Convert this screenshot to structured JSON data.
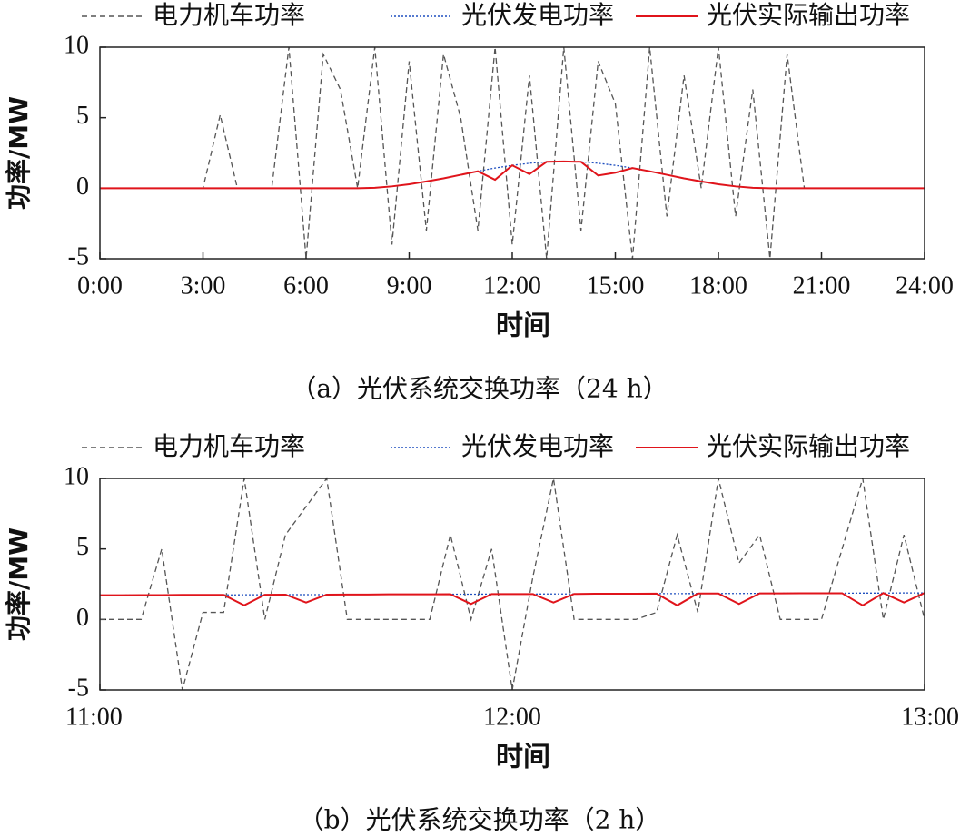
{
  "chart_data": [
    {
      "type": "line",
      "caption": "（a）光伏系统交换功率（24 h）",
      "xlabel": "时间",
      "ylabel": "功率/MW",
      "x": [
        0,
        0.5,
        1,
        1.5,
        2,
        2.5,
        3,
        3.5,
        4,
        4.5,
        5,
        5.5,
        6,
        6.5,
        7,
        7.5,
        8,
        8.5,
        9,
        9.5,
        10,
        10.5,
        11,
        11.5,
        12,
        12.5,
        13,
        13.5,
        14,
        14.5,
        15,
        15.5,
        16,
        16.5,
        17,
        17.5,
        18,
        18.5,
        19,
        19.5,
        20,
        20.5,
        21,
        21.5,
        22,
        22.5,
        23,
        23.5,
        24
      ],
      "xlim": [
        0,
        24
      ],
      "xticks": [
        {
          "value": 0,
          "label": "0:00"
        },
        {
          "value": 3,
          "label": "3:00"
        },
        {
          "value": 6,
          "label": "6:00"
        },
        {
          "value": 9,
          "label": "9:00"
        },
        {
          "value": 12,
          "label": "12:00"
        },
        {
          "value": 15,
          "label": "15:00"
        },
        {
          "value": 18,
          "label": "18:00"
        },
        {
          "value": 21,
          "label": "21:00"
        },
        {
          "value": 24,
          "label": "24:00"
        }
      ],
      "ylim": [
        -5,
        10
      ],
      "yticks": [
        -5,
        0,
        5,
        10
      ],
      "series": [
        {
          "name": "电力机车功率",
          "color": "#555555",
          "dash": "dashed",
          "values": [
            0,
            0,
            0,
            0,
            0,
            0,
            0,
            5.2,
            0,
            0,
            0,
            10,
            -5,
            9.5,
            7,
            0,
            10,
            -4,
            9,
            -3,
            9.5,
            5,
            -3,
            10,
            -4,
            8,
            -5,
            10,
            -3,
            9,
            6,
            -5,
            10,
            -2,
            8,
            0,
            10,
            -2,
            7,
            -5,
            9.5,
            0,
            0,
            0,
            0,
            0,
            0,
            0,
            0
          ]
        },
        {
          "name": "光伏发电功率",
          "color": "#1f4fbf",
          "dash": "dotted",
          "values": [
            0,
            0,
            0,
            0,
            0,
            0,
            0,
            0,
            0,
            0,
            0,
            0,
            0,
            0,
            0,
            0,
            0.03,
            0.13,
            0.28,
            0.48,
            0.7,
            0.95,
            1.2,
            1.43,
            1.62,
            1.77,
            1.87,
            1.9,
            1.87,
            1.77,
            1.62,
            1.43,
            1.2,
            0.95,
            0.7,
            0.48,
            0.28,
            0.13,
            0.03,
            0,
            0,
            0,
            0,
            0,
            0,
            0,
            0,
            0,
            0
          ]
        },
        {
          "name": "光伏实际输出功率",
          "color": "#e0141b",
          "dash": "solid",
          "values": [
            0,
            0,
            0,
            0,
            0,
            0,
            0,
            0,
            0,
            0,
            0,
            0,
            0,
            0,
            0,
            0,
            0.03,
            0.13,
            0.28,
            0.48,
            0.7,
            0.95,
            1.2,
            0.6,
            1.62,
            1.0,
            1.87,
            1.9,
            1.87,
            0.9,
            1.1,
            1.43,
            1.2,
            0.95,
            0.7,
            0.48,
            0.28,
            0.13,
            0.03,
            0,
            0,
            0,
            0,
            0,
            0,
            0,
            0,
            0,
            0
          ]
        }
      ]
    },
    {
      "type": "line",
      "caption": "（b）光伏系统交换功率（2 h）",
      "xlabel": "时间",
      "ylabel": "功率/MW",
      "x": [
        11,
        11.05,
        11.1,
        11.15,
        11.2,
        11.25,
        11.3,
        11.35,
        11.4,
        11.45,
        11.5,
        11.55,
        11.6,
        11.65,
        11.7,
        11.75,
        11.8,
        11.85,
        11.9,
        11.95,
        12,
        12.05,
        12.1,
        12.15,
        12.2,
        12.25,
        12.3,
        12.35,
        12.4,
        12.45,
        12.5,
        12.55,
        12.6,
        12.65,
        12.7,
        12.75,
        12.8,
        12.85,
        12.9,
        12.95,
        13
      ],
      "xlim": [
        11,
        13
      ],
      "xticks": [
        {
          "value": 11,
          "label": "11:00"
        },
        {
          "value": 12,
          "label": "12:00"
        },
        {
          "value": 13,
          "label": "13:00"
        }
      ],
      "ylim": [
        -5,
        10
      ],
      "yticks": [
        -5,
        0,
        5,
        10
      ],
      "series": [
        {
          "name": "电力机车功率",
          "color": "#555555",
          "dash": "dashed",
          "values": [
            0,
            0,
            0,
            5,
            -5,
            0.5,
            0.5,
            10,
            0,
            6,
            8,
            10,
            0,
            0,
            0,
            0,
            0,
            6,
            0,
            5,
            -5,
            3,
            10,
            0,
            0,
            0,
            0,
            0.5,
            6,
            0.5,
            10,
            4,
            6,
            0,
            0,
            0,
            5,
            10,
            0,
            6,
            0
          ]
        },
        {
          "name": "光伏发电功率",
          "color": "#1f4fbf",
          "dash": "dotted",
          "values": [
            1.72,
            1.72,
            1.73,
            1.73,
            1.74,
            1.74,
            1.74,
            1.75,
            1.75,
            1.76,
            1.76,
            1.76,
            1.77,
            1.77,
            1.78,
            1.78,
            1.78,
            1.79,
            1.79,
            1.8,
            1.8,
            1.8,
            1.81,
            1.81,
            1.82,
            1.82,
            1.82,
            1.83,
            1.83,
            1.84,
            1.84,
            1.84,
            1.85,
            1.85,
            1.86,
            1.86,
            1.86,
            1.87,
            1.87,
            1.88,
            1.88
          ]
        },
        {
          "name": "光伏实际输出功率",
          "color": "#e0141b",
          "dash": "solid",
          "values": [
            1.72,
            1.72,
            1.73,
            1.73,
            1.74,
            1.74,
            1.74,
            1.0,
            1.75,
            1.76,
            1.2,
            1.76,
            1.77,
            1.77,
            1.78,
            1.78,
            1.78,
            1.79,
            1.1,
            1.8,
            1.8,
            1.8,
            1.2,
            1.81,
            1.82,
            1.82,
            1.82,
            1.83,
            1.0,
            1.84,
            1.84,
            1.1,
            1.85,
            1.85,
            1.86,
            1.86,
            1.86,
            1.0,
            1.87,
            1.2,
            1.88
          ]
        }
      ]
    }
  ]
}
